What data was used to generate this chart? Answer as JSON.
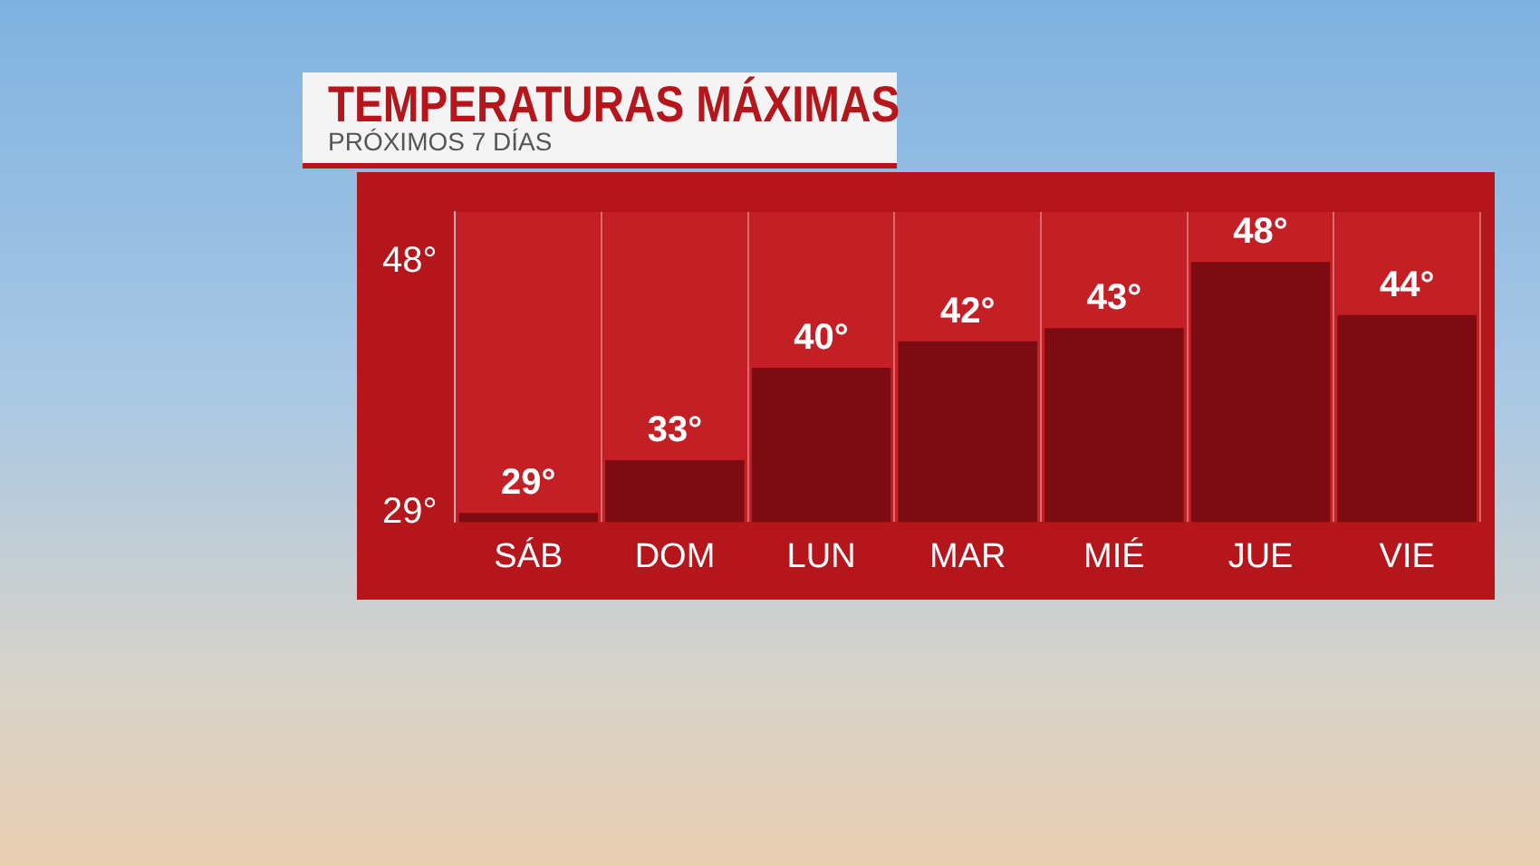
{
  "chart_data": {
    "type": "bar",
    "title": "TEMPERATURAS MÁXIMAS",
    "subtitle": "PRÓXIMOS 7 DÍAS",
    "categories": [
      "SÁB",
      "DOM",
      "LUN",
      "MAR",
      "MIÉ",
      "JUE",
      "VIE"
    ],
    "values": [
      29,
      33,
      40,
      42,
      43,
      48,
      44
    ],
    "value_labels": [
      "29°",
      "33°",
      "40°",
      "42°",
      "43°",
      "48°",
      "44°"
    ],
    "color": "#7d0c12",
    "ylim": [
      28.3,
      51.8
    ],
    "yticks": [
      {
        "value": 29,
        "label": "29°"
      },
      {
        "value": 48,
        "label": "48°"
      }
    ],
    "grid": "x",
    "legend": false
  }
}
